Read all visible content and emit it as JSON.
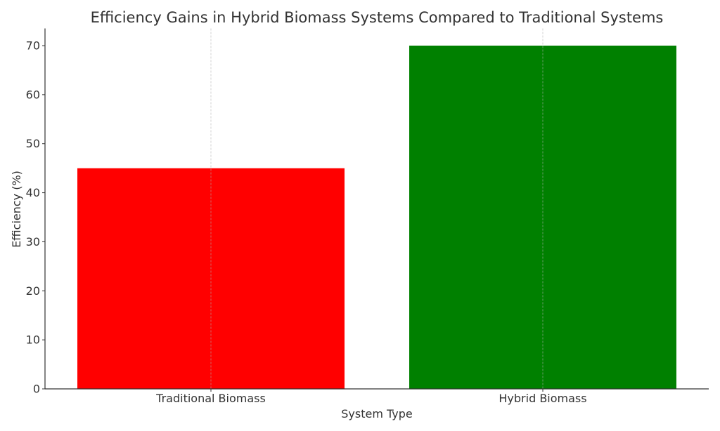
{
  "chart_data": {
    "type": "bar",
    "title": "Efficiency Gains in Hybrid Biomass Systems Compared to Traditional Systems",
    "xlabel": "System Type",
    "ylabel": "Efficiency (%)",
    "categories": [
      "Traditional Biomass",
      "Hybrid Biomass"
    ],
    "values": [
      45,
      70
    ],
    "colors": [
      "#ff0000",
      "#008000"
    ],
    "ylim": [
      0,
      73.5
    ],
    "yticks": [
      0,
      10,
      20,
      30,
      40,
      50,
      60,
      70
    ],
    "grid": {
      "x": true,
      "y": false,
      "style": "dashed"
    }
  }
}
